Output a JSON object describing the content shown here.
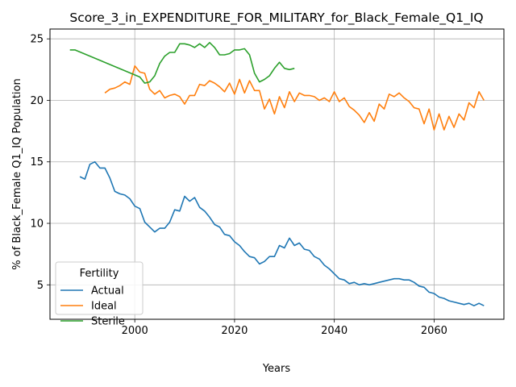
{
  "chart_data": {
    "type": "line",
    "title": "Score_3_in_EXPENDITURE_FOR_MILITARY_for_Black_Female_Q1_IQ",
    "xlabel": "Years",
    "ylabel": "% of Black_Female Q1_IQ Population",
    "xlim": [
      1983,
      2074
    ],
    "ylim": [
      2.2,
      25.8
    ],
    "xticks": [
      2000,
      2020,
      2040,
      2060
    ],
    "yticks": [
      5,
      10,
      15,
      20,
      25
    ],
    "grid": true,
    "legend": {
      "title": "Fertility",
      "position": "lower-left"
    },
    "series": [
      {
        "name": "Actual",
        "color": "#1f77b4",
        "x": [
          1989,
          1990,
          1991,
          1992,
          1993,
          1994,
          1995,
          1996,
          1997,
          1998,
          1999,
          2000,
          2001,
          2002,
          2003,
          2004,
          2005,
          2006,
          2007,
          2008,
          2009,
          2010,
          2011,
          2012,
          2013,
          2014,
          2015,
          2016,
          2017,
          2018,
          2019,
          2020,
          2021,
          2022,
          2023,
          2024,
          2025,
          2026,
          2027,
          2028,
          2029,
          2030,
          2031,
          2032,
          2033,
          2034,
          2035,
          2036,
          2037,
          2038,
          2039,
          2040,
          2041,
          2042,
          2043,
          2044,
          2045,
          2046,
          2047,
          2048,
          2049,
          2050,
          2051,
          2052,
          2053,
          2054,
          2055,
          2056,
          2057,
          2058,
          2059,
          2060,
          2061,
          2062,
          2063,
          2064,
          2065,
          2066,
          2067,
          2068,
          2069,
          2070
        ],
        "values": [
          13.8,
          13.6,
          14.8,
          15.0,
          14.5,
          14.5,
          13.7,
          12.6,
          12.4,
          12.3,
          12.0,
          11.4,
          11.2,
          10.1,
          9.7,
          9.3,
          9.6,
          9.6,
          10.1,
          11.1,
          11.0,
          12.2,
          11.8,
          12.1,
          11.3,
          11.0,
          10.5,
          9.9,
          9.7,
          9.1,
          9.0,
          8.5,
          8.2,
          7.7,
          7.3,
          7.2,
          6.7,
          6.9,
          7.3,
          7.3,
          8.2,
          8.0,
          8.8,
          8.2,
          8.4,
          7.9,
          7.8,
          7.3,
          7.1,
          6.6,
          6.3,
          5.9,
          5.5,
          5.4,
          5.1,
          5.2,
          5.0,
          5.1,
          5.0,
          5.1,
          5.2,
          5.3,
          5.4,
          5.5,
          5.5,
          5.4,
          5.4,
          5.2,
          4.9,
          4.8,
          4.4,
          4.3,
          4.0,
          3.9,
          3.7,
          3.6,
          3.5,
          3.4,
          3.5,
          3.3,
          3.5,
          3.3
        ]
      },
      {
        "name": "Ideal",
        "color": "#ff7f0e",
        "x": [
          1994,
          1995,
          1996,
          1997,
          1998,
          1999,
          2000,
          2001,
          2002,
          2003,
          2004,
          2005,
          2006,
          2007,
          2008,
          2009,
          2010,
          2011,
          2012,
          2013,
          2014,
          2015,
          2016,
          2017,
          2018,
          2019,
          2020,
          2021,
          2022,
          2023,
          2024,
          2025,
          2026,
          2027,
          2028,
          2029,
          2030,
          2031,
          2032,
          2033,
          2034,
          2035,
          2036,
          2037,
          2038,
          2039,
          2040,
          2041,
          2042,
          2043,
          2044,
          2045,
          2046,
          2047,
          2048,
          2049,
          2050,
          2051,
          2052,
          2053,
          2054,
          2055,
          2056,
          2057,
          2058,
          2059,
          2060,
          2061,
          2062,
          2063,
          2064,
          2065,
          2066,
          2067,
          2068,
          2069,
          2070
        ],
        "values": [
          20.6,
          20.9,
          21.0,
          21.2,
          21.5,
          21.3,
          22.8,
          22.3,
          22.2,
          20.9,
          20.5,
          20.8,
          20.2,
          20.4,
          20.5,
          20.3,
          19.7,
          20.4,
          20.4,
          21.3,
          21.2,
          21.6,
          21.4,
          21.1,
          20.7,
          21.4,
          20.5,
          21.7,
          20.6,
          21.6,
          20.8,
          20.8,
          19.3,
          20.1,
          18.9,
          20.3,
          19.4,
          20.7,
          19.9,
          20.6,
          20.4,
          20.4,
          20.3,
          20.0,
          20.2,
          19.9,
          20.7,
          19.9,
          20.2,
          19.5,
          19.2,
          18.8,
          18.2,
          19.0,
          18.3,
          19.7,
          19.3,
          20.5,
          20.3,
          20.6,
          20.2,
          19.9,
          19.4,
          19.3,
          18.1,
          19.3,
          17.6,
          18.9,
          17.6,
          18.7,
          17.8,
          18.9,
          18.4,
          19.8,
          19.4,
          20.7,
          20.0
        ]
      },
      {
        "name": "Sterile",
        "color": "#2ca02c",
        "x": [
          1987,
          1988,
          2001,
          2002,
          2003,
          2004,
          2005,
          2006,
          2007,
          2008,
          2009,
          2010,
          2011,
          2012,
          2013,
          2014,
          2015,
          2016,
          2017,
          2018,
          2019,
          2020,
          2021,
          2022,
          2023,
          2024,
          2025,
          2026,
          2027,
          2028,
          2029,
          2030,
          2031,
          2032
        ],
        "values": [
          24.1,
          24.1,
          21.9,
          21.4,
          21.5,
          22.0,
          23.0,
          23.6,
          23.9,
          23.9,
          24.6,
          24.6,
          24.5,
          24.3,
          24.6,
          24.3,
          24.7,
          24.3,
          23.7,
          23.7,
          23.8,
          24.1,
          24.1,
          24.2,
          23.7,
          22.2,
          21.5,
          21.7,
          22.0,
          22.6,
          23.1,
          22.6,
          22.5,
          22.6
        ]
      }
    ]
  }
}
